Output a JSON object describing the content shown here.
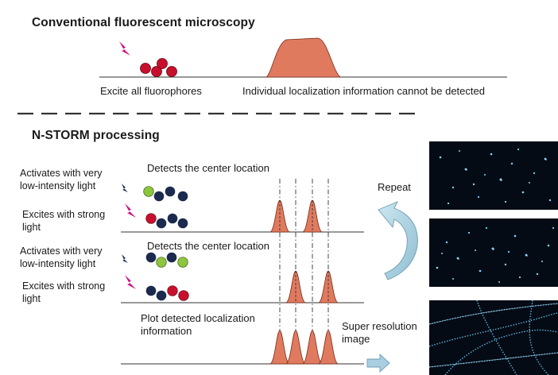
{
  "sections": {
    "conventional": {
      "title": "Conventional fluorescent microscopy",
      "excite_label": "Excite all fluorophores",
      "result_label": "Individual localization information cannot be detected"
    },
    "storm": {
      "title": "N-STORM processing",
      "step1_activate": [
        "Activates with very",
        "low-intensity light"
      ],
      "step1_detect": "Detects the center location",
      "step1_excite": [
        "Excites with strong",
        "light"
      ],
      "step2_activate": [
        "Activates with very",
        "low-intensity light"
      ],
      "step2_detect": "Detects the center location",
      "step2_excite": [
        "Excites with strong",
        "light"
      ],
      "plot_label": [
        "Plot detected localization",
        "information"
      ],
      "repeat_label": "Repeat",
      "super_res_label": [
        "Super resolution",
        "image"
      ]
    }
  },
  "colors": {
    "red_fluorophore": "#c8102e",
    "navy_fluorophore": "#1b2a4e",
    "green_fluorophore": "#8cc63f",
    "peak_fill": "#e07a5f",
    "peak_stroke": "#7a2a16",
    "bolt": "#d6007e",
    "arrow": "#a9cfe0",
    "panel_bg": "#050b14"
  },
  "icons": {
    "light": "lightning-bolt-icon",
    "repeat": "curved-arrow-icon",
    "result": "right-arrow-icon"
  }
}
